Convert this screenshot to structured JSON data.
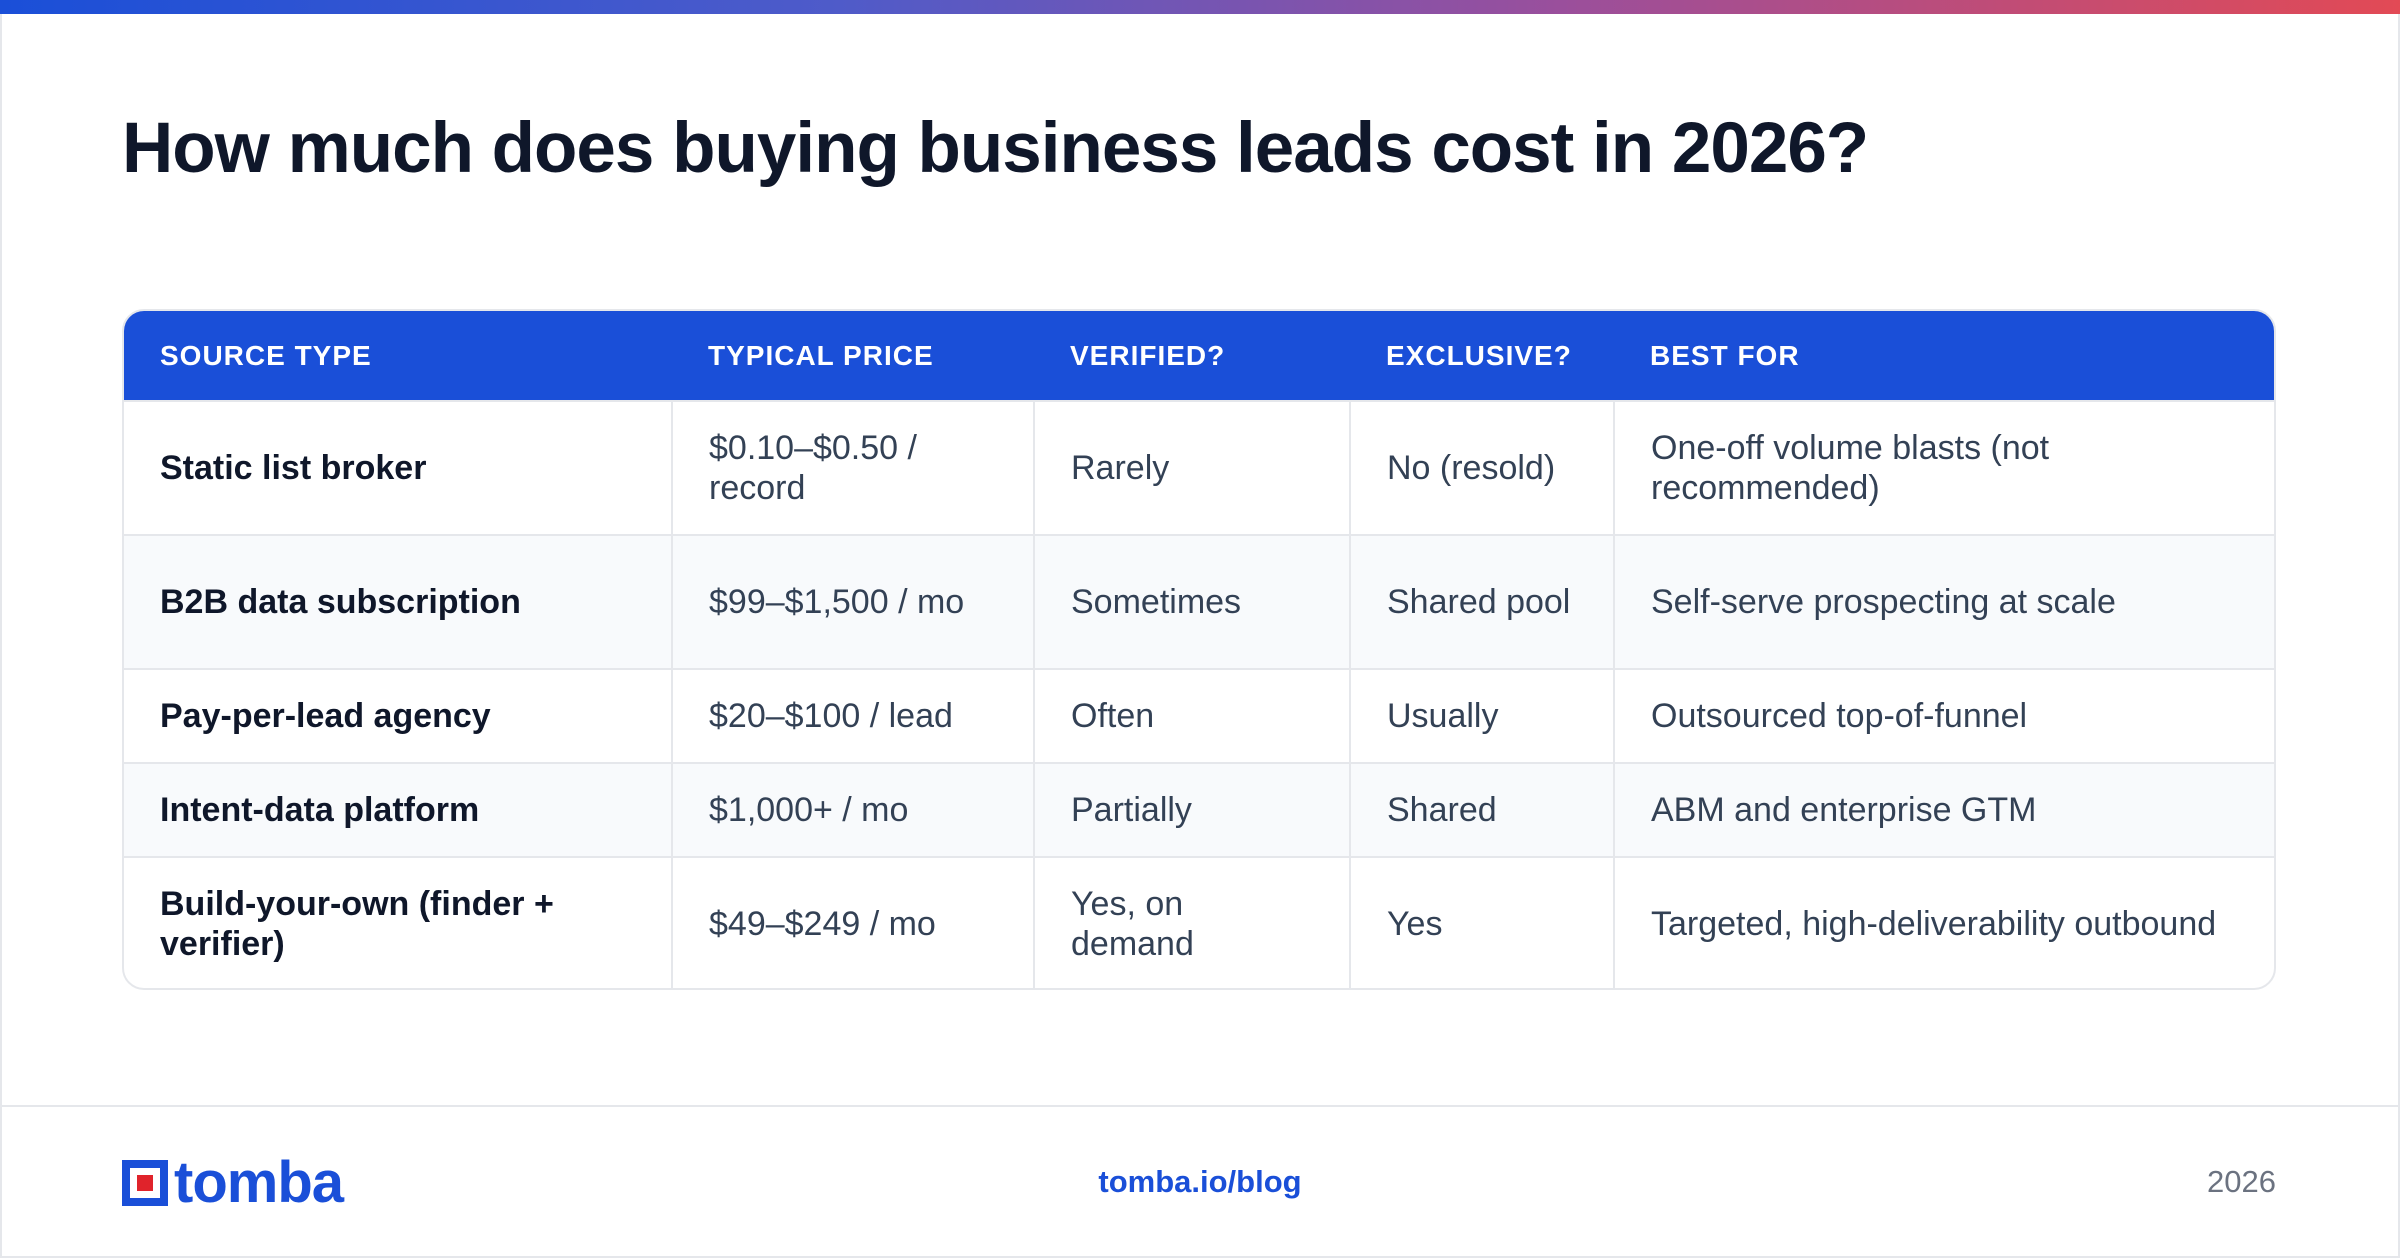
{
  "title": "How much does buying business leads cost in 2026?",
  "table": {
    "headers": [
      "SOURCE TYPE",
      "TYPICAL PRICE",
      "VERIFIED?",
      "EXCLUSIVE?",
      "BEST FOR"
    ],
    "rows": [
      {
        "source": "Static list broker",
        "price": "$0.10–$0.50 / record",
        "verified": "Rarely",
        "exclusive": "No (resold)",
        "best_for": "One-off volume blasts (not recommended)"
      },
      {
        "source": "B2B data subscription",
        "price": "$99–$1,500 / mo",
        "verified": "Sometimes",
        "exclusive": "Shared pool",
        "best_for": "Self-serve prospecting at scale"
      },
      {
        "source": "Pay-per-lead agency",
        "price": "$20–$100 / lead",
        "verified": "Often",
        "exclusive": "Usually",
        "best_for": "Outsourced top-of-funnel"
      },
      {
        "source": "Intent-data platform",
        "price": "$1,000+ / mo",
        "verified": "Partially",
        "exclusive": "Shared",
        "best_for": "ABM and enterprise GTM"
      },
      {
        "source": "Build-your-own (finder + verifier)",
        "price": "$49–$249 / mo",
        "verified": "Yes, on demand",
        "exclusive": "Yes",
        "best_for": "Targeted, high-deliverability outbound"
      }
    ]
  },
  "footer": {
    "logo_text": "tomba",
    "link": "tomba.io/blog",
    "year": "2026"
  },
  "colors": {
    "accent": "#1a4fd8",
    "logo_red": "#e0232b",
    "gradient": [
      "#1a4fd8",
      "#9a4f9c",
      "#e24a55"
    ]
  }
}
